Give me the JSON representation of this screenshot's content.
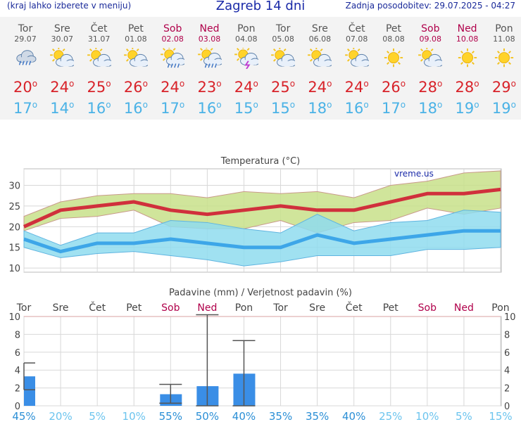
{
  "header": {
    "left": "(kraj lahko izberete v meniju)",
    "title": "Zagreb 14 dni",
    "right": "Zadnja posodobitev: 29.07.2025 - 04:27"
  },
  "degree_symbol": "o",
  "days": [
    {
      "name": "Tor",
      "date": "29.07",
      "weekend": false,
      "icon": "cloud-rain-icon",
      "tmax": "20",
      "tmin": "17"
    },
    {
      "name": "Sre",
      "date": "30.07",
      "weekend": false,
      "icon": "sun-cloud-icon",
      "tmax": "24",
      "tmin": "14"
    },
    {
      "name": "Čet",
      "date": "31.07",
      "weekend": false,
      "icon": "sun-cloud-icon",
      "tmax": "25",
      "tmin": "16"
    },
    {
      "name": "Pet",
      "date": "01.08",
      "weekend": false,
      "icon": "sun-cloud-icon",
      "tmax": "26",
      "tmin": "16"
    },
    {
      "name": "Sob",
      "date": "02.08",
      "weekend": true,
      "icon": "sun-cloud-rain-icon",
      "tmax": "24",
      "tmin": "17"
    },
    {
      "name": "Ned",
      "date": "03.08",
      "weekend": true,
      "icon": "sun-cloud-rain-icon",
      "tmax": "23",
      "tmin": "16"
    },
    {
      "name": "Pon",
      "date": "04.08",
      "weekend": false,
      "icon": "sun-cloud-storm-icon",
      "tmax": "24",
      "tmin": "15"
    },
    {
      "name": "Tor",
      "date": "05.08",
      "weekend": false,
      "icon": "sun-cloud-icon",
      "tmax": "25",
      "tmin": "15"
    },
    {
      "name": "Sre",
      "date": "06.08",
      "weekend": false,
      "icon": "sun-cloud-icon",
      "tmax": "24",
      "tmin": "18"
    },
    {
      "name": "Čet",
      "date": "07.08",
      "weekend": false,
      "icon": "sun-cloud-icon",
      "tmax": "24",
      "tmin": "16"
    },
    {
      "name": "Pet",
      "date": "08.08",
      "weekend": false,
      "icon": "sun-icon",
      "tmax": "26",
      "tmin": "17"
    },
    {
      "name": "Sob",
      "date": "09.08",
      "weekend": true,
      "icon": "sun-cloud-icon",
      "tmax": "28",
      "tmin": "18"
    },
    {
      "name": "Ned",
      "date": "10.08",
      "weekend": true,
      "icon": "sun-icon",
      "tmax": "28",
      "tmin": "19"
    },
    {
      "name": "Pon",
      "date": "11.08",
      "weekend": false,
      "icon": "sun-icon",
      "tmax": "29",
      "tmin": "19"
    }
  ],
  "chart_data": [
    {
      "type": "line",
      "title": "Temperatura (°C)",
      "watermark": "vreme.us",
      "ylim": [
        9,
        34
      ],
      "yticks": [
        10,
        15,
        20,
        25,
        30
      ],
      "grid": true,
      "series": [
        {
          "name": "max",
          "color": "#d0303c",
          "values": [
            20,
            24,
            25,
            26,
            24,
            23,
            24,
            25,
            24,
            24,
            26,
            28,
            28,
            29
          ]
        },
        {
          "name": "max_upper",
          "color": "#c8e08a",
          "values": [
            22.5,
            26,
            27.5,
            28,
            28,
            27,
            28.5,
            28,
            28.5,
            27,
            30,
            31,
            33,
            33.5
          ]
        },
        {
          "name": "max_lower",
          "color": "#c8e08a",
          "values": [
            19,
            22,
            22.5,
            24,
            20,
            19.5,
            19.5,
            21.5,
            18.5,
            21,
            21.5,
            24.5,
            23,
            24.5
          ]
        },
        {
          "name": "min",
          "color": "#3da6e8",
          "values": [
            17,
            14,
            16,
            16,
            17,
            16,
            15,
            15,
            18,
            16,
            17,
            18,
            19,
            19
          ]
        },
        {
          "name": "min_upper",
          "color": "#8fdcef",
          "values": [
            19,
            15.5,
            18.5,
            18.5,
            21.5,
            21,
            19.5,
            18.5,
            23,
            19,
            21,
            21.5,
            24,
            23.5
          ]
        },
        {
          "name": "min_lower",
          "color": "#8fdcef",
          "values": [
            15,
            12.5,
            13.5,
            14,
            13,
            12,
            10.5,
            11.5,
            13,
            13,
            13,
            14.5,
            14.5,
            15
          ]
        }
      ]
    },
    {
      "type": "bar",
      "title": "Padavine (mm) / Verjetnost padavin (%)",
      "categories": [
        "Tor",
        "Sre",
        "Čet",
        "Pet",
        "Sob",
        "Ned",
        "Pon",
        "Tor",
        "Sre",
        "Čet",
        "Pet",
        "Sob",
        "Ned",
        "Pon"
      ],
      "weekend": [
        false,
        false,
        false,
        false,
        true,
        true,
        false,
        false,
        false,
        false,
        false,
        true,
        true,
        false
      ],
      "ylim": [
        0,
        10
      ],
      "yticks": [
        0,
        2,
        4,
        6,
        8,
        10
      ],
      "values": [
        3.3,
        0,
        0,
        0,
        1.3,
        2.2,
        3.6,
        0,
        0,
        0,
        0,
        0,
        0,
        0
      ],
      "error_low": [
        1.8,
        0,
        0,
        0,
        0.3,
        0,
        0,
        0,
        0,
        0,
        0,
        0,
        0,
        0
      ],
      "error_high": [
        4.8,
        0,
        0,
        0,
        2.4,
        10.2,
        7.3,
        0,
        0,
        0,
        0,
        0,
        0,
        0
      ],
      "probability": [
        "45%",
        "20%",
        "5%",
        "10%",
        "55%",
        "50%",
        "40%",
        "35%",
        "35%",
        "40%",
        "25%",
        "10%",
        "5%",
        "15%"
      ],
      "probability_values": [
        45,
        20,
        5,
        10,
        55,
        50,
        40,
        35,
        35,
        40,
        25,
        10,
        5,
        15
      ],
      "bar_color": "#3a8ee6"
    }
  ]
}
